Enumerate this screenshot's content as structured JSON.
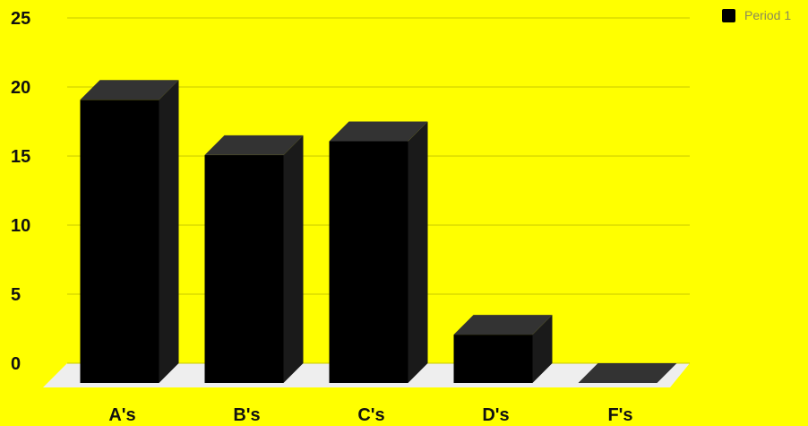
{
  "chart_data": {
    "type": "bar",
    "categories": [
      "A's",
      "B's",
      "C's",
      "D's",
      "F's"
    ],
    "series": [
      {
        "name": "Period 1",
        "values": [
          20.5,
          16.5,
          17.5,
          3.5,
          0
        ]
      }
    ],
    "ylim": [
      0,
      25
    ],
    "yticks": [
      0,
      5,
      10,
      15,
      20,
      25
    ],
    "grid": true,
    "legend_position": "top-right",
    "style": "3d",
    "colors": {
      "background": "#ffff00",
      "bar_front": "#000000",
      "bar_top": "#333333",
      "bar_side": "#1a1a1a",
      "floor": "#eeeeee",
      "grid": "#c8c800"
    }
  }
}
